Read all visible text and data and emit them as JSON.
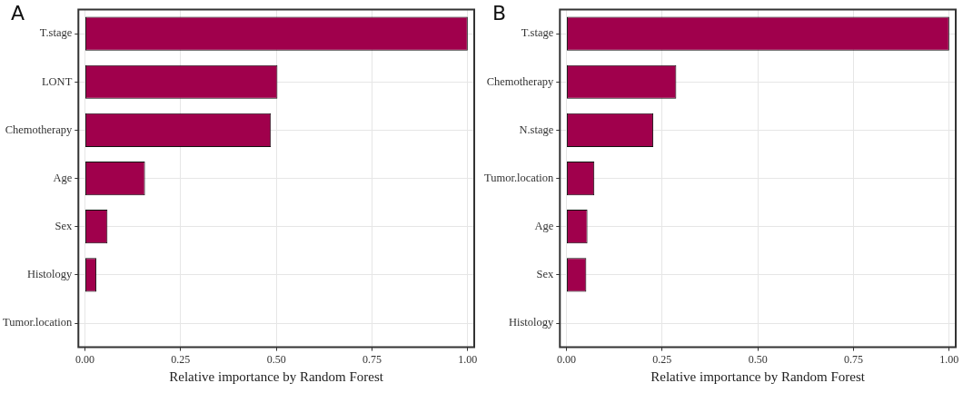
{
  "chart_data": [
    {
      "type": "bar",
      "orientation": "horizontal",
      "title": "A",
      "xlabel": "Relative importance by Random Forest",
      "categories": [
        "T.stage",
        "LONT",
        "Chemotherapy",
        "Age",
        "Sex",
        "Histology",
        "Tumor.location"
      ],
      "values": [
        1.0,
        0.503,
        0.486,
        0.157,
        0.059,
        0.03,
        0.0
      ],
      "color": "#a0004c",
      "xlim": [
        -0.017,
        1.017
      ],
      "xticks": [
        {
          "value": 0,
          "label": "0.00"
        },
        {
          "value": 0.25,
          "label": "0.25"
        },
        {
          "value": 0.5,
          "label": "0.50"
        },
        {
          "value": 0.75,
          "label": "0.75"
        },
        {
          "value": 1,
          "label": "1.00"
        }
      ],
      "grid": true
    },
    {
      "type": "bar",
      "orientation": "horizontal",
      "title": "B",
      "xlabel": "Relative importance by Random Forest",
      "categories": [
        "T.stage",
        "Chemotherapy",
        "N.stage",
        "Tumor.location",
        "Age",
        "Sex",
        "Histology"
      ],
      "values": [
        1.0,
        0.287,
        0.227,
        0.073,
        0.055,
        0.052,
        0.0
      ],
      "color": "#a0004c",
      "xlim": [
        -0.017,
        1.017
      ],
      "xticks": [
        {
          "value": 0,
          "label": "0.00"
        },
        {
          "value": 0.25,
          "label": "0.25"
        },
        {
          "value": 0.5,
          "label": "0.50"
        },
        {
          "value": 0.75,
          "label": "0.75"
        },
        {
          "value": 1,
          "label": "1.00"
        }
      ],
      "grid": true
    }
  ]
}
